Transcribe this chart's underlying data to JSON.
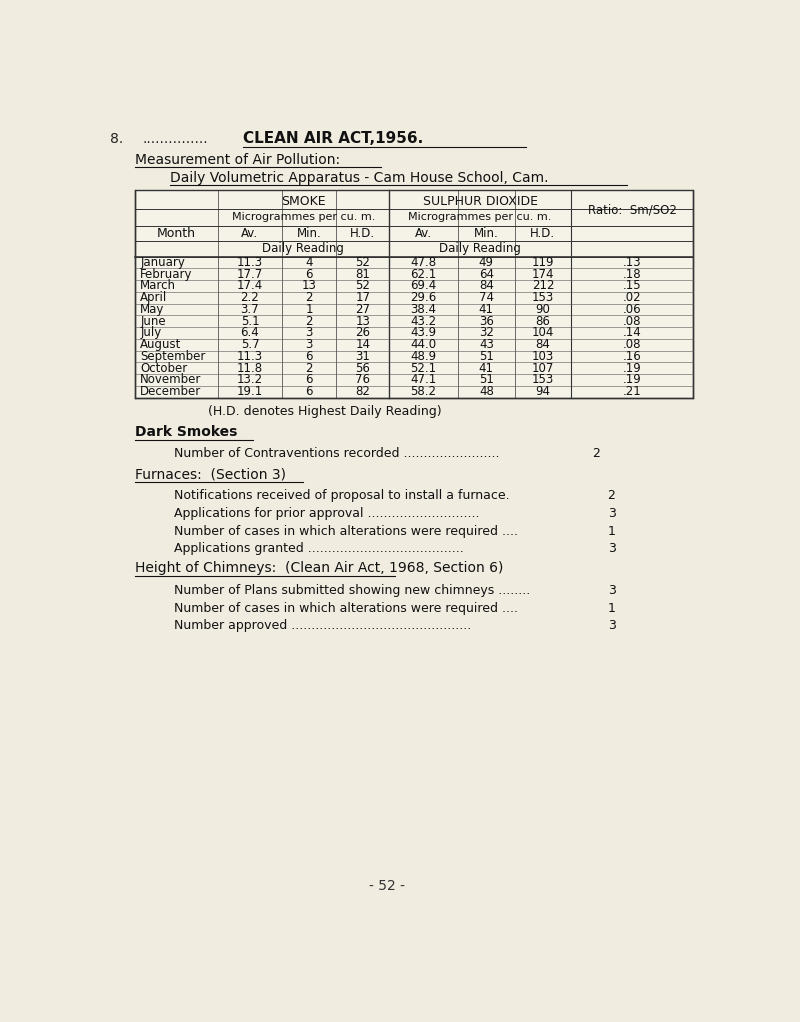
{
  "page_number": "8.",
  "dots": "...............",
  "title": "CLEAN AIR ACT,1956.",
  "section_title": "Measurement of Air Pollution:",
  "subtitle": "Daily Volumetric Apparatus - Cam House School, Cam.",
  "table_header_smoke": "SMOKE",
  "table_header_so2": "SULPHUR DIOXIDE",
  "table_header_units": "Microgrammes per cu. m.",
  "table_header_month": "Month",
  "table_header_av": "Av.",
  "table_header_min": "Min.",
  "table_header_hd": "H.D.",
  "table_header_daily": "Daily Reading",
  "table_header_ratio": "Ratio:  Sm/SO2",
  "months": [
    "January",
    "February",
    "March",
    "April",
    "May",
    "June",
    "July",
    "August",
    "September",
    "October",
    "November",
    "December"
  ],
  "smoke_av": [
    11.3,
    17.7,
    17.4,
    2.2,
    3.7,
    5.1,
    6.4,
    5.7,
    11.3,
    11.8,
    13.2,
    19.1
  ],
  "smoke_min": [
    4,
    6,
    13,
    2,
    1,
    2,
    3,
    3,
    6,
    2,
    6,
    6
  ],
  "smoke_hd": [
    52,
    81,
    52,
    17,
    27,
    13,
    26,
    14,
    31,
    56,
    76,
    82
  ],
  "so2_av": [
    47.8,
    62.1,
    69.4,
    29.6,
    38.4,
    43.2,
    43.9,
    44.0,
    48.9,
    52.1,
    47.1,
    58.2
  ],
  "so2_min": [
    49,
    64,
    84,
    74,
    41,
    36,
    32,
    43,
    51,
    41,
    51,
    48
  ],
  "so2_hd": [
    119,
    174,
    212,
    153,
    90,
    86,
    104,
    84,
    103,
    107,
    153,
    94
  ],
  "ratio": [
    ".13",
    ".18",
    ".15",
    ".02",
    ".06",
    ".08",
    ".14",
    ".08",
    ".16",
    ".19",
    ".19",
    ".21"
  ],
  "hd_note": "(H.D. denotes Highest Daily Reading)",
  "dark_smokes_title": "Dark Smokes",
  "dark_smokes_items": [
    [
      "Number of Contraventions recorded ........................",
      "2"
    ]
  ],
  "furnaces_title": "Furnaces:  (Section 3)",
  "furnaces_items": [
    [
      "Notifications received of proposal to install a furnace.",
      "2"
    ],
    [
      "Applications for prior approval ............................",
      "3"
    ],
    [
      "Number of cases in which alterations were required ....",
      "1"
    ],
    [
      "Applications granted .......................................",
      "3"
    ]
  ],
  "chimneys_title": "Height of Chimneys:  (Clean Air Act, 1968, Section 6)",
  "chimneys_items": [
    [
      "Number of Plans submitted showing new chimneys ........",
      "3"
    ],
    [
      "Number of cases in which alterations were required ....",
      "1"
    ],
    [
      "Number approved .............................................",
      "3"
    ]
  ],
  "footer": "- 52 -",
  "bg_color": "#f0ece0",
  "table_bg": "#f5f2e8"
}
